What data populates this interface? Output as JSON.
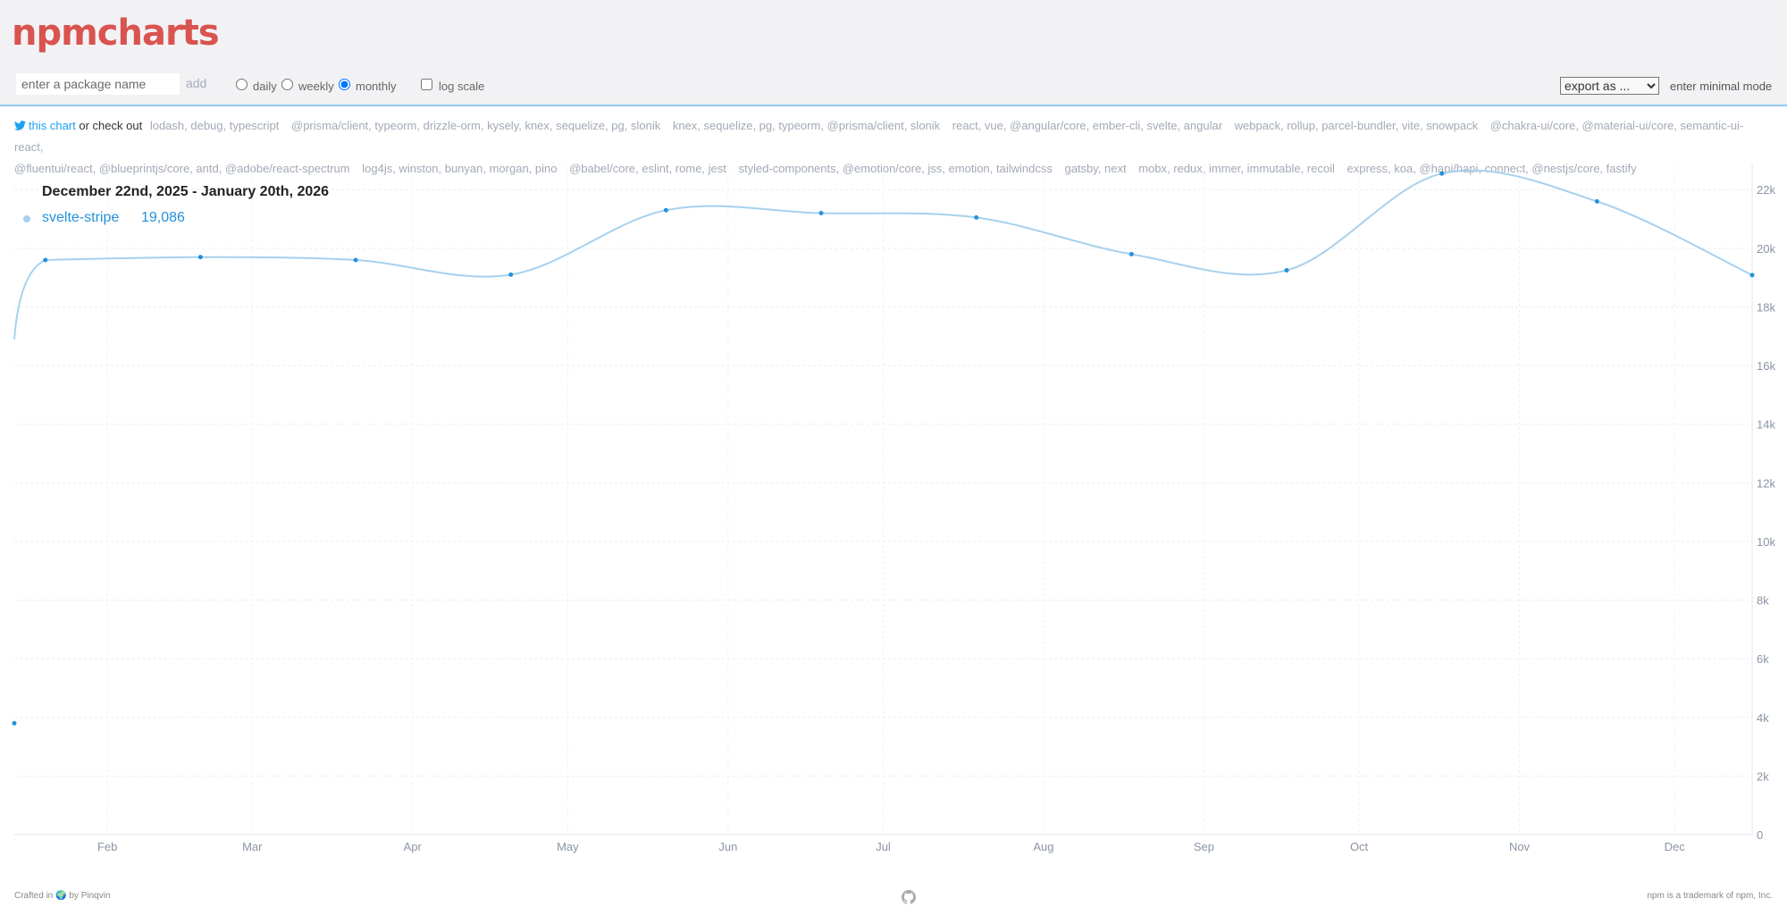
{
  "header": {
    "logo": "npmcharts",
    "package_input": {
      "placeholder": "enter a package name",
      "value": ""
    },
    "add_label": "add",
    "interval_options": [
      {
        "label": "daily",
        "checked": false
      },
      {
        "label": "weekly",
        "checked": false
      },
      {
        "label": "monthly",
        "checked": true
      }
    ],
    "log_scale": {
      "label": "log scale",
      "checked": false
    },
    "export_select": {
      "selected": "export as ..."
    },
    "minimal_mode_label": "enter minimal mode"
  },
  "suggestions": {
    "tweet_link": "this chart",
    "check_out_text": "or check out",
    "groups": [
      "lodash, debug, typescript",
      "@prisma/client, typeorm, drizzle-orm, kysely, knex, sequelize, pg, slonik",
      "knex, sequelize, pg, typeorm, @prisma/client, slonik",
      "react, vue, @angular/core, ember-cli, svelte, angular",
      "webpack, rollup, parcel-bundler, vite, snowpack",
      "@chakra-ui/core, @material-ui/core, semantic-ui-react,",
      "@fluentui/react, @blueprintjs/core, antd, @adobe/react-spectrum",
      "log4js, winston, bunyan, morgan, pino",
      "@babel/core, eslint, rome, jest",
      "styled-components, @emotion/core, jss, emotion, tailwindcss",
      "gatsby, next",
      "mobx, redux, immer, immutable, recoil",
      "express, koa, @hapi/hapi, connect, @nestjs/core, fastify"
    ]
  },
  "legend": {
    "date_range": "December 22nd, 2025 - January 20th, 2026",
    "package": "svelte-stripe",
    "value": "19,086"
  },
  "colors": {
    "brand": "#d9534f",
    "series_line": "#a7d1ee",
    "series_point": "#2491dd"
  },
  "chart_data": {
    "type": "line",
    "interval": "monthly",
    "series": [
      {
        "name": "svelte-stripe",
        "points": [
          {
            "x": "2025-01-14",
            "y": 3800
          },
          {
            "x": "2025-01-20",
            "y": 19600
          },
          {
            "x": "2025-02-19",
            "y": 19700
          },
          {
            "x": "2025-03-21",
            "y": 19600
          },
          {
            "x": "2025-04-20",
            "y": 19100
          },
          {
            "x": "2025-05-20",
            "y": 21300
          },
          {
            "x": "2025-06-19",
            "y": 21200
          },
          {
            "x": "2025-07-19",
            "y": 21050
          },
          {
            "x": "2025-08-18",
            "y": 19800
          },
          {
            "x": "2025-09-17",
            "y": 19250
          },
          {
            "x": "2025-10-17",
            "y": 22550
          },
          {
            "x": "2025-11-16",
            "y": 21600
          },
          {
            "x": "2025-12-16",
            "y": 19086
          }
        ]
      }
    ],
    "x_ticks": [
      "Feb",
      "Mar",
      "Apr",
      "May",
      "Jun",
      "Jul",
      "Aug",
      "Sep",
      "Oct",
      "Nov",
      "Dec"
    ],
    "y_ticks": [
      "0",
      "2k",
      "4k",
      "6k",
      "8k",
      "10k",
      "12k",
      "14k",
      "16k",
      "18k",
      "20k",
      "22k"
    ],
    "ylim": [
      0,
      22800
    ],
    "log_scale": false,
    "grid": true,
    "y_axis_position": "right"
  },
  "footer": {
    "crafted_prefix": "Crafted in",
    "crafted_emoji": "🌍",
    "crafted_by": "by Pinqvin",
    "trademark": "npm is a trademark of npm, Inc."
  }
}
